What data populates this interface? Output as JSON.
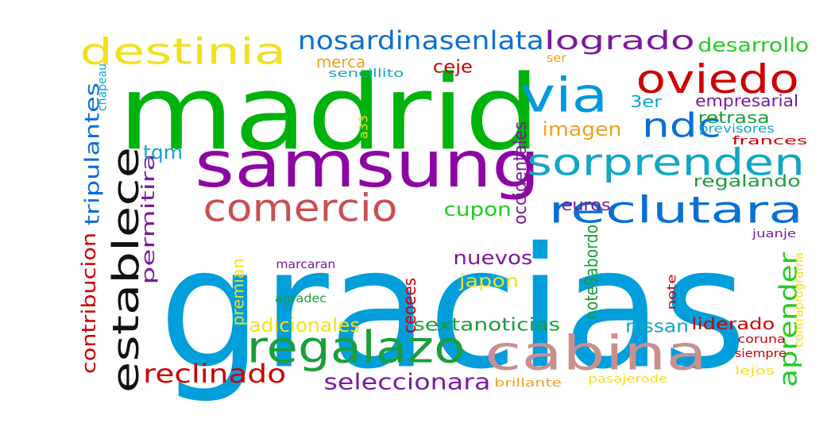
{
  "words": [
    {
      "text": "gracias",
      "color": "#009edb"
    },
    {
      "text": "madrid",
      "color": "#00b20c"
    },
    {
      "text": "samsung",
      "color": "#8d06a3"
    },
    {
      "text": "cabina",
      "color": "#c98f8f"
    },
    {
      "text": "establece",
      "color": "#111111"
    },
    {
      "text": "via",
      "color": "#0099dd"
    },
    {
      "text": "regalazo",
      "color": "#1a9e3b"
    },
    {
      "text": "oviedo",
      "color": "#cc0000"
    },
    {
      "text": "comercio",
      "color": "#c85050"
    },
    {
      "text": "reclutara",
      "color": "#0a6fd4"
    },
    {
      "text": "sorprenden",
      "color": "#11a6c6"
    },
    {
      "text": "destinia",
      "color": "#f0e020"
    },
    {
      "text": "ndc",
      "color": "#0a6fd4"
    },
    {
      "text": "reclinado",
      "color": "#cc0000"
    },
    {
      "text": "nosardinasenlata",
      "color": "#0a6fd4"
    },
    {
      "text": "logrado",
      "color": "#7a1a9e"
    },
    {
      "text": "aprender",
      "color": "#22cc22"
    },
    {
      "text": "tripulantes",
      "color": "#0a6fd4"
    },
    {
      "text": "seleccionara",
      "color": "#7a1a9e"
    },
    {
      "text": "sextanoticias",
      "color": "#1a9e3b"
    },
    {
      "text": "imagen",
      "color": "#f0a020"
    },
    {
      "text": "nuevos",
      "color": "#7a1a9e"
    },
    {
      "text": "contribucion",
      "color": "#cc0000"
    },
    {
      "text": "permitira",
      "color": "#7a1a9e"
    },
    {
      "text": "desarrollo",
      "color": "#22cc22"
    },
    {
      "text": "empresarial",
      "color": "#7a1a9e"
    },
    {
      "text": "cupon",
      "color": "#22cc22"
    },
    {
      "text": "regalando",
      "color": "#1a9e3b"
    },
    {
      "text": "liderado",
      "color": "#cc0000"
    },
    {
      "text": "retrasa",
      "color": "#1a9e3b"
    },
    {
      "text": "nissan",
      "color": "#11a6c6"
    },
    {
      "text": "adicionales",
      "color": "#f0e020"
    },
    {
      "text": "occidentales",
      "color": "#7a1a9e"
    },
    {
      "text": "note8abordo",
      "color": "#1a9e3b"
    },
    {
      "text": "euros",
      "color": "#7a1a9e"
    },
    {
      "text": "tqm",
      "color": "#11a6c6"
    },
    {
      "text": "ceoees",
      "color": "#cc0000"
    },
    {
      "text": "japon",
      "color": "#f0e020"
    },
    {
      "text": "ceje",
      "color": "#cc0000"
    },
    {
      "text": "merca",
      "color": "#f0a020"
    },
    {
      "text": "premian",
      "color": "#f0e020"
    },
    {
      "text": "3er",
      "color": "#11a6c6"
    },
    {
      "text": "agradec",
      "color": "#1a9e3b"
    },
    {
      "text": "marcaran",
      "color": "#7a1a9e"
    },
    {
      "text": "ser",
      "color": "#f0a020"
    },
    {
      "text": "sencillito",
      "color": "#11a6c6"
    },
    {
      "text": "chapeau",
      "color": "#11a6c6"
    },
    {
      "text": "a33",
      "color": "#f0e020"
    },
    {
      "text": "previsores",
      "color": "#11a6c6"
    },
    {
      "text": "frances",
      "color": "#cc0000"
    },
    {
      "text": "juanje",
      "color": "#7a1a9e"
    },
    {
      "text": "contraprograma",
      "color": "#f0e020"
    },
    {
      "text": "note",
      "color": "#cc0000"
    },
    {
      "text": "coruna",
      "color": "#cc0000"
    },
    {
      "text": "siempre",
      "color": "#cc0000"
    },
    {
      "text": "lejos",
      "color": "#f0e020"
    },
    {
      "text": "brillante",
      "color": "#f0a020"
    },
    {
      "text": "pasajerode",
      "color": "#f0e020"
    }
  ]
}
